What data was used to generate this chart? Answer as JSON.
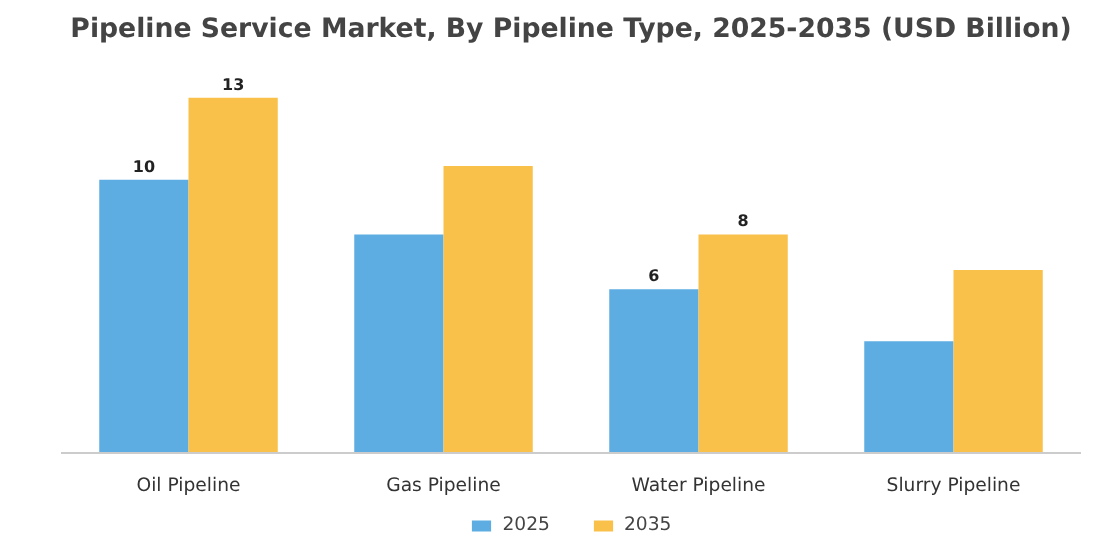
{
  "chart_data": {
    "type": "bar",
    "title": "Pipeline Service Market, By Pipeline Type, 2025-2035 (USD Billion)",
    "categories": [
      "Oil Pipeline",
      "Gas Pipeline",
      "Water Pipeline",
      "Slurry Pipeline"
    ],
    "series": [
      {
        "name": "2025",
        "color": "#5dade2",
        "values": [
          10,
          8.0,
          6,
          4.1
        ],
        "value_labels": [
          "10",
          null,
          "6",
          null
        ]
      },
      {
        "name": "2035",
        "color": "#f9c04a",
        "values": [
          13,
          10.5,
          8,
          6.7
        ],
        "value_labels": [
          "13",
          null,
          "8",
          null
        ]
      }
    ],
    "legend": "bottom"
  }
}
